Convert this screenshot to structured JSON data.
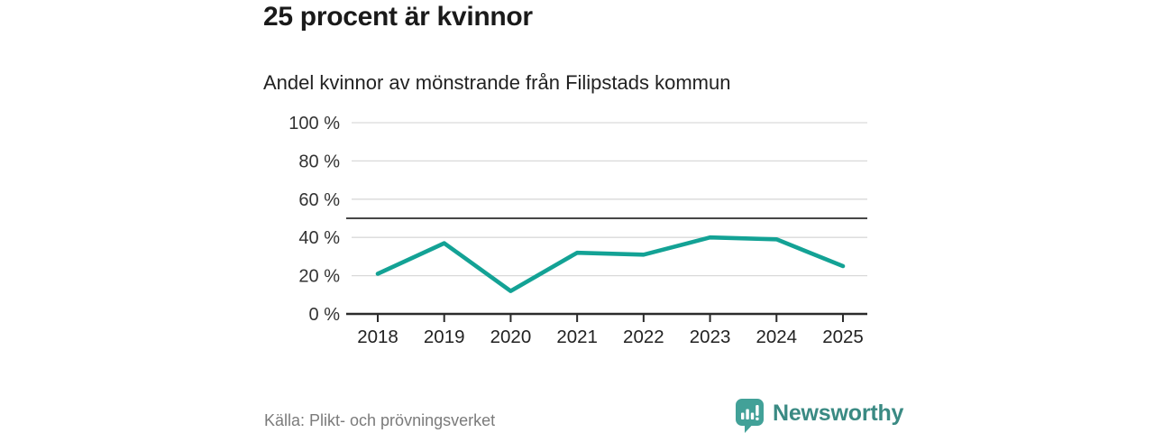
{
  "page": {
    "brand": "Newsworthy"
  },
  "colors": {
    "line": "#13a295",
    "grid": "#d9d9d9",
    "reference_line": "#474747",
    "axis": "#2b2b2b",
    "tick_label": "#333333",
    "title_text": "#1a1a1a",
    "muted_text": "#7b7b7b",
    "brand_teal": "#3a8a83",
    "logo_bg": "#42a198",
    "logo_glyph": "#ffffff"
  },
  "chart_data": {
    "type": "line",
    "title": "25 procent är kvinnor",
    "subtitle": "Andel kvinnor av mönstrande från Filipstads kommun",
    "x": [
      2018,
      2019,
      2020,
      2021,
      2022,
      2023,
      2024,
      2025
    ],
    "values": [
      21,
      37,
      12,
      32,
      31,
      40,
      39,
      25
    ],
    "ylim": [
      0,
      100
    ],
    "yticks": [
      0,
      20,
      40,
      60,
      80,
      100
    ],
    "ytick_suffix": " %",
    "reference_line": 50,
    "grid": true,
    "legend": false,
    "xlabel": "",
    "ylabel": "",
    "source": "Källa: Plikt- och prövningsverket"
  }
}
